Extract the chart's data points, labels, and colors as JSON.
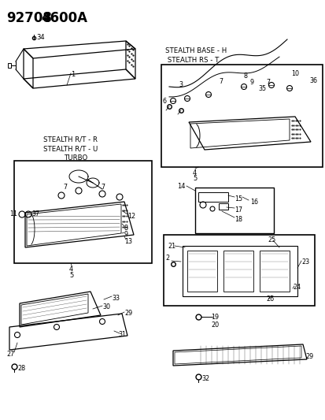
{
  "bg_color": "#ffffff",
  "title1": "92708",
  "title2": "4600A",
  "stealth_base1": "STEALTH BASE - H",
  "stealth_base2": " STEALTH RS - T",
  "stealth_rt1": "STEALTH R/T - R",
  "stealth_rt2": "STEALTH R/T - U",
  "turbo": "TURBO"
}
